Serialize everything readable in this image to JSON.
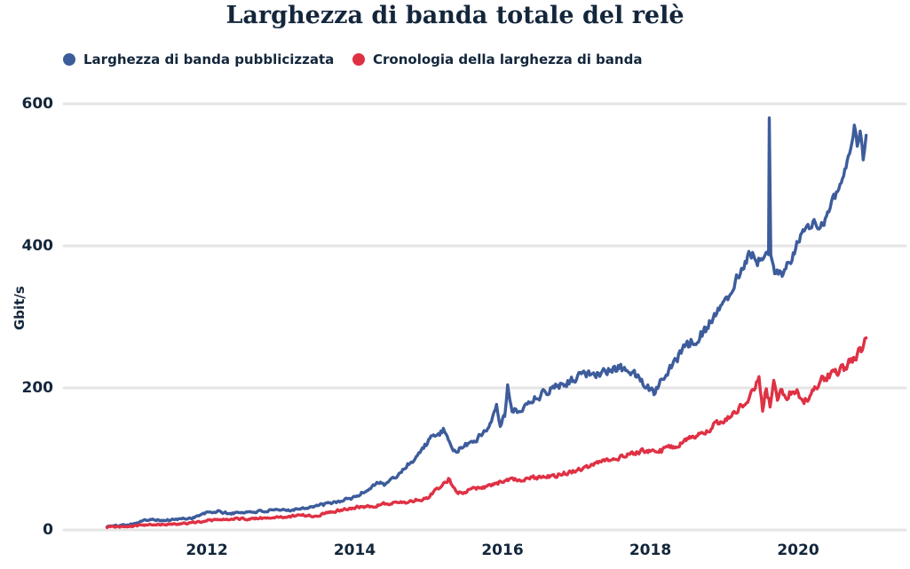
{
  "title": "Larghezza di banda totale del relè",
  "colors": {
    "text": "#13263b",
    "background": "#ffffff",
    "grid": "#e5e5e5",
    "advertised": "#3d5c9b",
    "history": "#df3144"
  },
  "y_axis_title": "Gbit/s",
  "chart_data": {
    "type": "line",
    "title": "Larghezza di banda totale del relè",
    "xlabel": "",
    "ylabel": "Gbit/s",
    "x_range": [
      2010.65,
      2020.92
    ],
    "ylim": [
      0,
      620
    ],
    "yticks": [
      0,
      200,
      400,
      600
    ],
    "xticks": [
      2012,
      2014,
      2016,
      2018,
      2020
    ],
    "grid": "horizontal",
    "legend_position": "top-left",
    "series": [
      {
        "name": "Larghezza di banda pubblicizzata",
        "color": "#3d5c9b",
        "points": [
          [
            2010.65,
            5
          ],
          [
            2010.8,
            6
          ],
          [
            2011.0,
            9
          ],
          [
            2011.15,
            13
          ],
          [
            2011.25,
            16
          ],
          [
            2011.4,
            13
          ],
          [
            2011.6,
            15
          ],
          [
            2011.8,
            17
          ],
          [
            2012.0,
            24
          ],
          [
            2012.15,
            26
          ],
          [
            2012.3,
            23
          ],
          [
            2012.5,
            25
          ],
          [
            2012.7,
            26
          ],
          [
            2012.9,
            27
          ],
          [
            2013.1,
            28
          ],
          [
            2013.3,
            31
          ],
          [
            2013.5,
            34
          ],
          [
            2013.7,
            38
          ],
          [
            2013.85,
            42
          ],
          [
            2014.0,
            46
          ],
          [
            2014.2,
            58
          ],
          [
            2014.3,
            68
          ],
          [
            2014.4,
            64
          ],
          [
            2014.55,
            74
          ],
          [
            2014.7,
            90
          ],
          [
            2014.85,
            105
          ],
          [
            2015.0,
            126
          ],
          [
            2015.1,
            133
          ],
          [
            2015.2,
            140
          ],
          [
            2015.3,
            115
          ],
          [
            2015.4,
            112
          ],
          [
            2015.55,
            122
          ],
          [
            2015.7,
            132
          ],
          [
            2015.85,
            152
          ],
          [
            2015.92,
            182
          ],
          [
            2015.97,
            150
          ],
          [
            2016.03,
            162
          ],
          [
            2016.07,
            202
          ],
          [
            2016.13,
            164
          ],
          [
            2016.2,
            168
          ],
          [
            2016.32,
            176
          ],
          [
            2016.45,
            188
          ],
          [
            2016.55,
            192
          ],
          [
            2016.7,
            202
          ],
          [
            2016.85,
            208
          ],
          [
            2017.0,
            215
          ],
          [
            2017.15,
            220
          ],
          [
            2017.3,
            223
          ],
          [
            2017.45,
            224
          ],
          [
            2017.6,
            228
          ],
          [
            2017.75,
            222
          ],
          [
            2017.9,
            207
          ],
          [
            2018.05,
            194
          ],
          [
            2018.15,
            215
          ],
          [
            2018.3,
            235
          ],
          [
            2018.45,
            254
          ],
          [
            2018.6,
            268
          ],
          [
            2018.75,
            283
          ],
          [
            2018.9,
            305
          ],
          [
            2019.05,
            330
          ],
          [
            2019.2,
            362
          ],
          [
            2019.35,
            392
          ],
          [
            2019.45,
            380
          ],
          [
            2019.55,
            388
          ],
          [
            2019.6,
            392
          ],
          [
            2019.61,
            578
          ],
          [
            2019.63,
            382
          ],
          [
            2019.7,
            362
          ],
          [
            2019.8,
            356
          ],
          [
            2019.9,
            382
          ],
          [
            2020.0,
            405
          ],
          [
            2020.1,
            422
          ],
          [
            2020.2,
            430
          ],
          [
            2020.3,
            428
          ],
          [
            2020.4,
            448
          ],
          [
            2020.5,
            470
          ],
          [
            2020.6,
            498
          ],
          [
            2020.68,
            522
          ],
          [
            2020.76,
            566
          ],
          [
            2020.8,
            538
          ],
          [
            2020.84,
            560
          ],
          [
            2020.88,
            518
          ],
          [
            2020.92,
            552
          ]
        ]
      },
      {
        "name": "Cronologia della larghezza di banda",
        "color": "#df3144",
        "points": [
          [
            2010.65,
            4
          ],
          [
            2010.9,
            5
          ],
          [
            2011.2,
            7
          ],
          [
            2011.5,
            8
          ],
          [
            2011.8,
            10
          ],
          [
            2012.0,
            13
          ],
          [
            2012.3,
            15
          ],
          [
            2012.6,
            16
          ],
          [
            2012.9,
            17
          ],
          [
            2013.1,
            19
          ],
          [
            2013.3,
            21
          ],
          [
            2013.45,
            19
          ],
          [
            2013.6,
            24
          ],
          [
            2013.8,
            28
          ],
          [
            2014.0,
            32
          ],
          [
            2014.25,
            34
          ],
          [
            2014.5,
            38
          ],
          [
            2014.75,
            40
          ],
          [
            2015.0,
            46
          ],
          [
            2015.15,
            60
          ],
          [
            2015.27,
            72
          ],
          [
            2015.4,
            52
          ],
          [
            2015.6,
            57
          ],
          [
            2015.8,
            62
          ],
          [
            2016.0,
            68
          ],
          [
            2016.2,
            71
          ],
          [
            2016.4,
            73
          ],
          [
            2016.6,
            74
          ],
          [
            2016.8,
            79
          ],
          [
            2017.0,
            85
          ],
          [
            2017.2,
            91
          ],
          [
            2017.4,
            97
          ],
          [
            2017.6,
            104
          ],
          [
            2017.8,
            110
          ],
          [
            2018.0,
            113
          ],
          [
            2018.15,
            111
          ],
          [
            2018.3,
            118
          ],
          [
            2018.5,
            127
          ],
          [
            2018.7,
            138
          ],
          [
            2018.9,
            150
          ],
          [
            2019.05,
            158
          ],
          [
            2019.2,
            172
          ],
          [
            2019.35,
            186
          ],
          [
            2019.42,
            205
          ],
          [
            2019.47,
            211
          ],
          [
            2019.52,
            172
          ],
          [
            2019.57,
            200
          ],
          [
            2019.62,
            176
          ],
          [
            2019.67,
            205
          ],
          [
            2019.72,
            186
          ],
          [
            2019.78,
            196
          ],
          [
            2019.85,
            190
          ],
          [
            2019.92,
            196
          ],
          [
            2020.0,
            192
          ],
          [
            2020.08,
            180
          ],
          [
            2020.16,
            190
          ],
          [
            2020.24,
            202
          ],
          [
            2020.32,
            210
          ],
          [
            2020.42,
            218
          ],
          [
            2020.52,
            224
          ],
          [
            2020.62,
            228
          ],
          [
            2020.72,
            238
          ],
          [
            2020.8,
            248
          ],
          [
            2020.87,
            258
          ],
          [
            2020.92,
            266
          ]
        ]
      }
    ]
  }
}
